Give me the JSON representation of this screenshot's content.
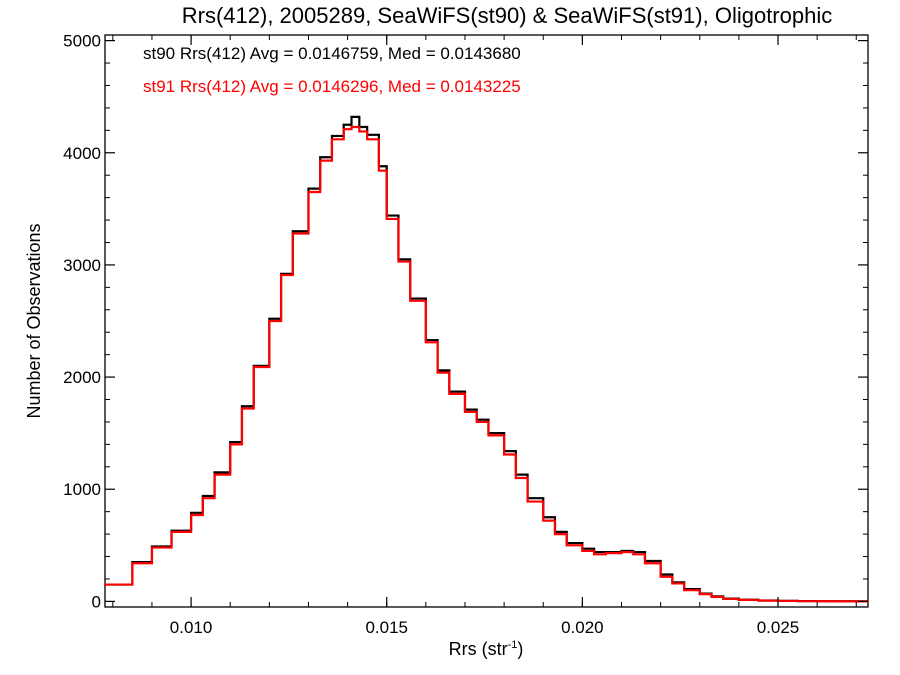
{
  "chart_data": {
    "type": "line",
    "title": "Rrs(412), 2005289, SeaWiFS(st90) & SeaWiFS(st91), Oligotrophic",
    "xlabel_main": "Rrs (str",
    "xlabel_sup": "-1",
    "xlabel_close": ")",
    "ylabel": "Number of Observations",
    "xlim": [
      0.0078,
      0.0273
    ],
    "ylim": [
      -50,
      5050
    ],
    "x_ticks": [
      {
        "value": 0.01,
        "label": "0.010"
      },
      {
        "value": 0.015,
        "label": "0.015"
      },
      {
        "value": 0.02,
        "label": "0.020"
      },
      {
        "value": 0.025,
        "label": "0.025"
      }
    ],
    "y_ticks": [
      {
        "value": 0,
        "label": "0"
      },
      {
        "value": 1000,
        "label": "1000"
      },
      {
        "value": 2000,
        "label": "2000"
      },
      {
        "value": 3000,
        "label": "3000"
      },
      {
        "value": 4000,
        "label": "4000"
      },
      {
        "value": 5000,
        "label": "5000"
      }
    ],
    "legend": [
      {
        "text": "st90 Rrs(412) Avg = 0.0146759, Med = 0.0143680",
        "color": "#000000"
      },
      {
        "text": "st91 Rrs(412) Avg = 0.0146296, Med = 0.0143225",
        "color": "#ff0000"
      }
    ],
    "x": [
      0.0078,
      0.0085,
      0.009,
      0.0095,
      0.01,
      0.0103,
      0.0106,
      0.011,
      0.0113,
      0.0116,
      0.012,
      0.0123,
      0.0126,
      0.013,
      0.0133,
      0.0136,
      0.0139,
      0.0141,
      0.0143,
      0.0145,
      0.0148,
      0.015,
      0.0153,
      0.0156,
      0.016,
      0.0163,
      0.0166,
      0.017,
      0.0173,
      0.0176,
      0.018,
      0.0183,
      0.0186,
      0.019,
      0.0193,
      0.0196,
      0.02,
      0.0203,
      0.0206,
      0.021,
      0.0213,
      0.0216,
      0.022,
      0.0223,
      0.0226,
      0.023,
      0.0233,
      0.0236,
      0.024,
      0.0245,
      0.025,
      0.0255,
      0.026,
      0.0265,
      0.027,
      0.0273
    ],
    "series": [
      {
        "name": "st90",
        "color": "#000000",
        "values": [
          150,
          350,
          490,
          630,
          790,
          940,
          1150,
          1420,
          1740,
          2100,
          2520,
          2920,
          3300,
          3680,
          3960,
          4150,
          4250,
          4320,
          4230,
          4160,
          3880,
          3440,
          3050,
          2700,
          2330,
          2060,
          1870,
          1710,
          1620,
          1500,
          1340,
          1130,
          920,
          750,
          620,
          520,
          470,
          440,
          440,
          450,
          440,
          360,
          240,
          170,
          110,
          70,
          45,
          25,
          15,
          8,
          5,
          3,
          2,
          1,
          0,
          0
        ]
      },
      {
        "name": "st91",
        "color": "#ff0000",
        "values": [
          150,
          340,
          480,
          620,
          770,
          920,
          1130,
          1400,
          1720,
          2090,
          2500,
          2910,
          3280,
          3650,
          3930,
          4120,
          4210,
          4230,
          4190,
          4120,
          3840,
          3410,
          3030,
          2680,
          2310,
          2040,
          1850,
          1690,
          1600,
          1480,
          1310,
          1100,
          890,
          720,
          600,
          500,
          450,
          420,
          430,
          440,
          420,
          340,
          220,
          160,
          100,
          65,
          40,
          22,
          13,
          7,
          4,
          2,
          1,
          0,
          0,
          0
        ]
      }
    ],
    "grid": false,
    "legend_position": "top-left"
  }
}
